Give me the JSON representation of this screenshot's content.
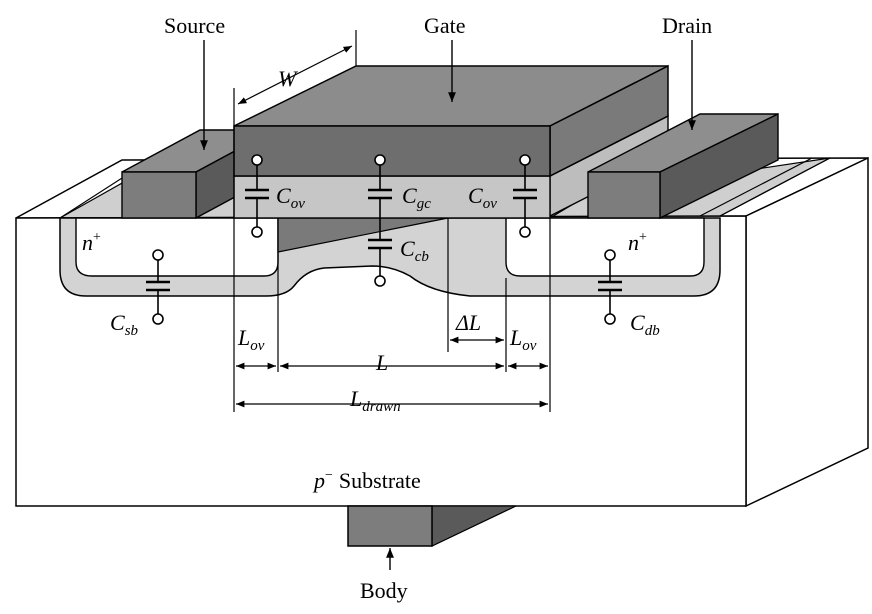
{
  "labels": {
    "source": "Source",
    "gate": "Gate",
    "drain": "Drain",
    "body": "Body",
    "substrate_sup": "−",
    "substrate_p": "p",
    "substrate_text": "Substrate",
    "n_plus_left": "n",
    "n_plus_right": "n",
    "plus": "+",
    "width": "W"
  },
  "capacitors": {
    "c_ov_left": {
      "main": "C",
      "sub": "ov"
    },
    "c_gc": {
      "main": "C",
      "sub": "gc"
    },
    "c_ov_right": {
      "main": "C",
      "sub": "ov"
    },
    "c_cb": {
      "main": "C",
      "sub": "cb"
    },
    "c_sb": {
      "main": "C",
      "sub": "sb"
    },
    "c_db": {
      "main": "C",
      "sub": "db"
    }
  },
  "dimensions": {
    "l_ov_left": {
      "main": "L",
      "sub": "ov"
    },
    "l_ov_right": {
      "main": "L",
      "sub": "ov"
    },
    "l": "L",
    "delta_l": "ΔL",
    "l_drawn": {
      "main": "L",
      "sub": "drawn"
    }
  },
  "colors": {
    "gate_top": "#8c8c8c",
    "gate_front": "#6e6e6e",
    "gate_side": "#7a7a7a",
    "oxide": "#c6c6c6",
    "contact_top": "#8e8e8e",
    "contact_front": "#7d7d7d",
    "contact_side": "#5a5a5a",
    "diffusion": "#d3d3d3",
    "well": "#ffffff",
    "substrate_face": "#ffffff",
    "substrate_top": "#cfcfcf",
    "depletion": "#7a7a7a"
  }
}
